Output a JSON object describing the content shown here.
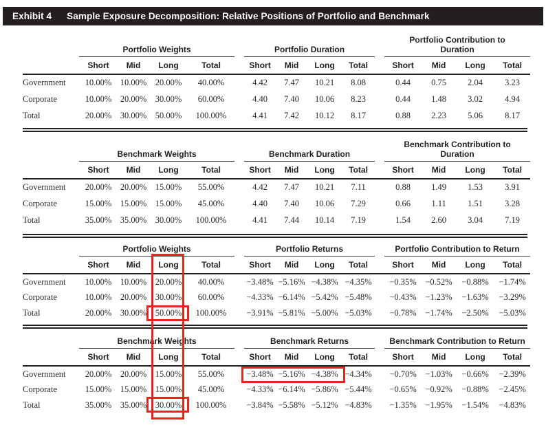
{
  "exhibit": {
    "label": "Exhibit 4",
    "title": "Sample Exposure Decomposition: Relative Positions of Portfolio and Benchmark"
  },
  "column_headers": [
    "Short",
    "Mid",
    "Long",
    "Total"
  ],
  "row_labels": [
    "Government",
    "Corporate",
    "Total"
  ],
  "blocks": [
    {
      "groups": [
        {
          "title": "Portfolio Weights",
          "rows": [
            [
              "10.00%",
              "10.00%",
              "20.00%",
              "40.00%"
            ],
            [
              "10.00%",
              "20.00%",
              "30.00%",
              "60.00%"
            ],
            [
              "20.00%",
              "30.00%",
              "50.00%",
              "100.00%"
            ]
          ]
        },
        {
          "title": "Portfolio Duration",
          "rows": [
            [
              "4.42",
              "7.47",
              "10.21",
              "8.08"
            ],
            [
              "4.40",
              "7.40",
              "10.06",
              "8.23"
            ],
            [
              "4.41",
              "7.42",
              "10.12",
              "8.17"
            ]
          ]
        },
        {
          "title": "Portfolio Contribution to Duration",
          "rows": [
            [
              "0.44",
              "0.75",
              "2.04",
              "3.23"
            ],
            [
              "0.44",
              "1.48",
              "3.02",
              "4.94"
            ],
            [
              "0.88",
              "2.23",
              "5.06",
              "8.17"
            ]
          ]
        }
      ]
    },
    {
      "groups": [
        {
          "title": "Benchmark Weights",
          "rows": [
            [
              "20.00%",
              "20.00%",
              "15.00%",
              "55.00%"
            ],
            [
              "15.00%",
              "15.00%",
              "15.00%",
              "45.00%"
            ],
            [
              "35.00%",
              "35.00%",
              "30.00%",
              "100.00%"
            ]
          ]
        },
        {
          "title": "Benchmark Duration",
          "rows": [
            [
              "4.42",
              "7.47",
              "10.21",
              "7.11"
            ],
            [
              "4.40",
              "7.40",
              "10.06",
              "7.29"
            ],
            [
              "4.41",
              "7.44",
              "10.14",
              "7.19"
            ]
          ]
        },
        {
          "title": "Benchmark Contribution to Duration",
          "rows": [
            [
              "0.88",
              "1.49",
              "1.53",
              "3.91"
            ],
            [
              "0.66",
              "1.11",
              "1.51",
              "3.28"
            ],
            [
              "1.54",
              "2.60",
              "3.04",
              "7.19"
            ]
          ]
        }
      ]
    },
    {
      "groups": [
        {
          "title": "Portfolio Weights",
          "rows": [
            [
              "10.00%",
              "10.00%",
              "20.00%",
              "40.00%"
            ],
            [
              "10.00%",
              "20.00%",
              "30.00%",
              "60.00%"
            ],
            [
              "20.00%",
              "30.00%",
              "50.00%",
              "100.00%"
            ]
          ]
        },
        {
          "title": "Portfolio Returns",
          "rows": [
            [
              "−3.48%",
              "−5.16%",
              "−4.38%",
              "−4.35%"
            ],
            [
              "−4.33%",
              "−6.14%",
              "−5.42%",
              "−5.48%"
            ],
            [
              "−3.91%",
              "−5.81%",
              "−5.00%",
              "−5.03%"
            ]
          ]
        },
        {
          "title": "Portfolio Contribution to Return",
          "rows": [
            [
              "−0.35%",
              "−0.52%",
              "−0.88%",
              "−1.74%"
            ],
            [
              "−0.43%",
              "−1.23%",
              "−1.63%",
              "−3.29%"
            ],
            [
              "−0.78%",
              "−1.74%",
              "−2.50%",
              "−5.03%"
            ]
          ]
        }
      ]
    },
    {
      "groups": [
        {
          "title": "Benchmark Weights",
          "rows": [
            [
              "20.00%",
              "20.00%",
              "15.00%",
              "55.00%"
            ],
            [
              "15.00%",
              "15.00%",
              "15.00%",
              "45.00%"
            ],
            [
              "35.00%",
              "35.00%",
              "30.00%",
              "100.00%"
            ]
          ]
        },
        {
          "title": "Benchmark Returns",
          "rows": [
            [
              "−3.48%",
              "−5.16%",
              "−4.38%",
              "−4.34%"
            ],
            [
              "−4.33%",
              "−6.14%",
              "−5.86%",
              "−5.44%"
            ],
            [
              "−3.84%",
              "−5.58%",
              "−5.12%",
              "−4.83%"
            ]
          ]
        },
        {
          "title": "Benchmark Contribution to Return",
          "rows": [
            [
              "−0.70%",
              "−1.03%",
              "−0.66%",
              "−2.39%"
            ],
            [
              "−0.65%",
              "−0.92%",
              "−0.88%",
              "−2.45%"
            ],
            [
              "−1.35%",
              "−1.95%",
              "−1.54%",
              "−4.83%"
            ]
          ]
        }
      ]
    }
  ],
  "annotations": {
    "highlight_color": "#e8261f",
    "boxes": [
      "long-column-highlight",
      "portfolio-weights-long-total-highlight",
      "benchmark-weights-long-total-highlight",
      "benchmark-returns-government-highlight"
    ]
  },
  "colors": {
    "header_bar_bg": "#231f20",
    "text": "#231f20",
    "highlight_red": "#e8261f"
  }
}
